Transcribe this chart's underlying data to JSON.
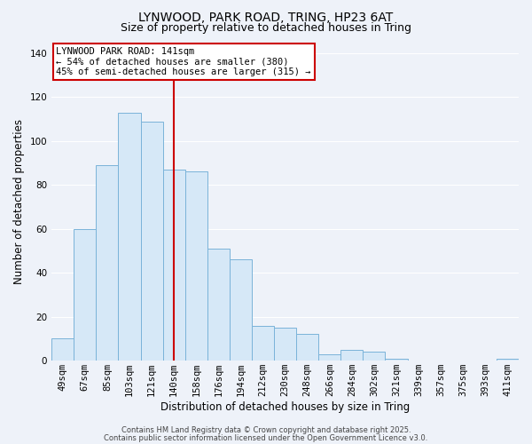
{
  "title_line1": "LYNWOOD, PARK ROAD, TRING, HP23 6AT",
  "title_line2": "Size of property relative to detached houses in Tring",
  "xlabel": "Distribution of detached houses by size in Tring",
  "ylabel": "Number of detached properties",
  "categories": [
    "49sqm",
    "67sqm",
    "85sqm",
    "103sqm",
    "121sqm",
    "140sqm",
    "158sqm",
    "176sqm",
    "194sqm",
    "212sqm",
    "230sqm",
    "248sqm",
    "266sqm",
    "284sqm",
    "302sqm",
    "321sqm",
    "339sqm",
    "357sqm",
    "375sqm",
    "393sqm",
    "411sqm"
  ],
  "values": [
    10,
    60,
    89,
    113,
    109,
    87,
    86,
    51,
    46,
    16,
    15,
    12,
    3,
    5,
    4,
    1,
    0,
    0,
    0,
    0,
    1
  ],
  "bar_color": "#d6e8f7",
  "bar_edge_color": "#7ab3d9",
  "bar_width": 1.0,
  "vline_x_index": 5,
  "vline_color": "#cc0000",
  "ylim": [
    0,
    145
  ],
  "yticks": [
    0,
    20,
    40,
    60,
    80,
    100,
    120,
    140
  ],
  "annotation_line1": "LYNWOOD PARK ROAD: 141sqm",
  "annotation_line2": "← 54% of detached houses are smaller (380)",
  "annotation_line3": "45% of semi-detached houses are larger (315) →",
  "footer_line1": "Contains HM Land Registry data © Crown copyright and database right 2025.",
  "footer_line2": "Contains public sector information licensed under the Open Government Licence v3.0.",
  "background_color": "#eef2f9",
  "grid_color": "#ffffff",
  "title_fontsize": 10,
  "subtitle_fontsize": 9,
  "axis_label_fontsize": 8.5,
  "tick_fontsize": 7.5,
  "annotation_fontsize": 7.5,
  "footer_fontsize": 6
}
